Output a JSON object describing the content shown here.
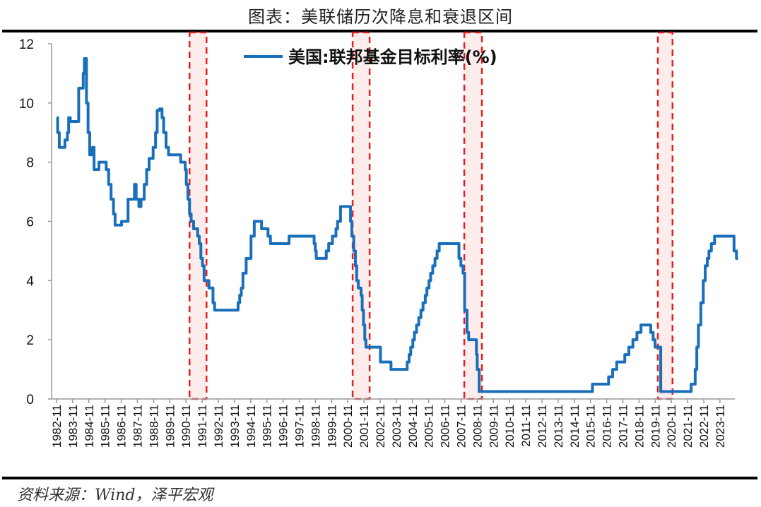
{
  "title": "图表：美联储历次降息和衰退区间",
  "source": "资料来源：Wind，泽平宏观",
  "chart_data": {
    "type": "line",
    "title": "图表：美联储历次降息和衰退区间",
    "xlabel": "",
    "ylabel": "",
    "ylim": [
      0,
      12
    ],
    "yticks": [
      0,
      2,
      4,
      6,
      8,
      10,
      12
    ],
    "xlim": [
      1982.83,
      2024.95
    ],
    "xticks": [
      "1982-11",
      "1983-11",
      "1984-11",
      "1985-11",
      "1986-11",
      "1987-11",
      "1988-11",
      "1989-11",
      "1990-11",
      "1991-11",
      "1992-11",
      "1993-11",
      "1994-11",
      "1995-11",
      "1996-11",
      "1997-11",
      "1998-11",
      "1999-11",
      "2000-11",
      "2001-11",
      "2002-11",
      "2003-11",
      "2004-11",
      "2005-11",
      "2006-11",
      "2007-11",
      "2008-11",
      "2009-11",
      "2010-11",
      "2011-11",
      "2012-11",
      "2013-11",
      "2014-11",
      "2015-11",
      "2016-11",
      "2017-11",
      "2018-11",
      "2019-11",
      "2020-11",
      "2021-11",
      "2022-11",
      "2023-11"
    ],
    "grid": false,
    "legend": "top-center",
    "line_color": "#1a6fba",
    "recession_color": "#e02020",
    "series": [
      {
        "name": "美国:联邦基金目标利率(%)",
        "step": true,
        "points": [
          [
            1982.83,
            9.5
          ],
          [
            1982.9,
            9.0
          ],
          [
            1983.0,
            8.5
          ],
          [
            1983.35,
            8.75
          ],
          [
            1983.5,
            9.0
          ],
          [
            1983.58,
            9.5
          ],
          [
            1983.68,
            9.375
          ],
          [
            1984.2,
            10.5
          ],
          [
            1984.48,
            11.0
          ],
          [
            1984.55,
            11.5
          ],
          [
            1984.68,
            10.0
          ],
          [
            1984.78,
            9.0
          ],
          [
            1984.88,
            8.25
          ],
          [
            1985.05,
            8.5
          ],
          [
            1985.15,
            7.75
          ],
          [
            1985.3,
            7.75
          ],
          [
            1985.45,
            8.0
          ],
          [
            1985.9,
            7.75
          ],
          [
            1986.05,
            7.25
          ],
          [
            1986.2,
            6.75
          ],
          [
            1986.35,
            6.25
          ],
          [
            1986.45,
            5.875
          ],
          [
            1986.85,
            6.0
          ],
          [
            1987.25,
            6.75
          ],
          [
            1987.55,
            6.75
          ],
          [
            1987.65,
            7.25
          ],
          [
            1987.75,
            6.75
          ],
          [
            1987.92,
            6.5
          ],
          [
            1988.05,
            6.75
          ],
          [
            1988.25,
            7.25
          ],
          [
            1988.4,
            7.75
          ],
          [
            1988.55,
            8.125
          ],
          [
            1988.8,
            8.5
          ],
          [
            1988.95,
            9.0
          ],
          [
            1989.05,
            9.75
          ],
          [
            1989.2,
            9.8
          ],
          [
            1989.35,
            9.5
          ],
          [
            1989.45,
            9.0
          ],
          [
            1989.6,
            8.5
          ],
          [
            1989.75,
            8.25
          ],
          [
            1990.5,
            8.0
          ],
          [
            1990.78,
            7.75
          ],
          [
            1990.85,
            7.25
          ],
          [
            1990.95,
            6.75
          ],
          [
            1991.05,
            6.25
          ],
          [
            1991.15,
            6.0
          ],
          [
            1991.3,
            5.75
          ],
          [
            1991.55,
            5.5
          ],
          [
            1991.65,
            5.25
          ],
          [
            1991.75,
            4.75
          ],
          [
            1991.85,
            4.5
          ],
          [
            1991.95,
            4.0
          ],
          [
            1992.25,
            3.75
          ],
          [
            1992.5,
            3.25
          ],
          [
            1992.6,
            3.0
          ],
          [
            1994.05,
            3.25
          ],
          [
            1994.15,
            3.5
          ],
          [
            1994.25,
            3.75
          ],
          [
            1994.35,
            4.25
          ],
          [
            1994.55,
            4.75
          ],
          [
            1994.85,
            5.5
          ],
          [
            1995.05,
            6.0
          ],
          [
            1995.5,
            5.75
          ],
          [
            1995.9,
            5.5
          ],
          [
            1996.05,
            5.25
          ],
          [
            1997.2,
            5.5
          ],
          [
            1998.75,
            5.25
          ],
          [
            1998.82,
            5.0
          ],
          [
            1998.88,
            4.75
          ],
          [
            1999.5,
            5.0
          ],
          [
            1999.65,
            5.25
          ],
          [
            1999.88,
            5.5
          ],
          [
            2000.1,
            5.75
          ],
          [
            2000.2,
            6.0
          ],
          [
            2000.38,
            6.5
          ],
          [
            2001.0,
            6.0
          ],
          [
            2001.08,
            5.5
          ],
          [
            2001.2,
            5.0
          ],
          [
            2001.3,
            4.5
          ],
          [
            2001.38,
            4.0
          ],
          [
            2001.48,
            3.75
          ],
          [
            2001.65,
            3.5
          ],
          [
            2001.72,
            3.0
          ],
          [
            2001.8,
            2.5
          ],
          [
            2001.88,
            2.0
          ],
          [
            2001.95,
            1.75
          ],
          [
            2002.85,
            1.25
          ],
          [
            2003.5,
            1.0
          ],
          [
            2004.5,
            1.25
          ],
          [
            2004.62,
            1.5
          ],
          [
            2004.72,
            1.75
          ],
          [
            2004.85,
            2.0
          ],
          [
            2004.95,
            2.25
          ],
          [
            2005.08,
            2.5
          ],
          [
            2005.22,
            2.75
          ],
          [
            2005.35,
            3.0
          ],
          [
            2005.48,
            3.25
          ],
          [
            2005.62,
            3.5
          ],
          [
            2005.72,
            3.75
          ],
          [
            2005.85,
            4.0
          ],
          [
            2005.95,
            4.25
          ],
          [
            2006.08,
            4.5
          ],
          [
            2006.22,
            4.75
          ],
          [
            2006.35,
            5.0
          ],
          [
            2006.48,
            5.25
          ],
          [
            2007.7,
            4.75
          ],
          [
            2007.82,
            4.5
          ],
          [
            2007.95,
            4.25
          ],
          [
            2008.05,
            3.0
          ],
          [
            2008.2,
            2.25
          ],
          [
            2008.3,
            2.0
          ],
          [
            2008.78,
            1.5
          ],
          [
            2008.83,
            1.0
          ],
          [
            2008.95,
            0.25
          ],
          [
            2015.95,
            0.5
          ],
          [
            2016.95,
            0.75
          ],
          [
            2017.2,
            1.0
          ],
          [
            2017.45,
            1.25
          ],
          [
            2017.95,
            1.5
          ],
          [
            2018.2,
            1.75
          ],
          [
            2018.45,
            2.0
          ],
          [
            2018.7,
            2.25
          ],
          [
            2018.95,
            2.5
          ],
          [
            2019.55,
            2.25
          ],
          [
            2019.7,
            2.0
          ],
          [
            2019.82,
            1.75
          ],
          [
            2020.17,
            0.25
          ],
          [
            2022.05,
            0.5
          ],
          [
            2022.3,
            1.0
          ],
          [
            2022.4,
            1.75
          ],
          [
            2022.5,
            2.5
          ],
          [
            2022.65,
            3.25
          ],
          [
            2022.8,
            4.0
          ],
          [
            2022.92,
            4.5
          ],
          [
            2023.05,
            4.75
          ],
          [
            2023.15,
            5.0
          ],
          [
            2023.3,
            5.25
          ],
          [
            2023.5,
            5.5
          ],
          [
            2024.7,
            5.0
          ],
          [
            2024.85,
            4.75
          ],
          [
            2024.95,
            4.75
          ]
        ]
      }
    ],
    "recession_periods": [
      [
        1991.05,
        1992.1
      ],
      [
        2001.13,
        2002.18
      ],
      [
        2008.03,
        2009.12
      ],
      [
        2019.99,
        2020.9
      ]
    ]
  }
}
